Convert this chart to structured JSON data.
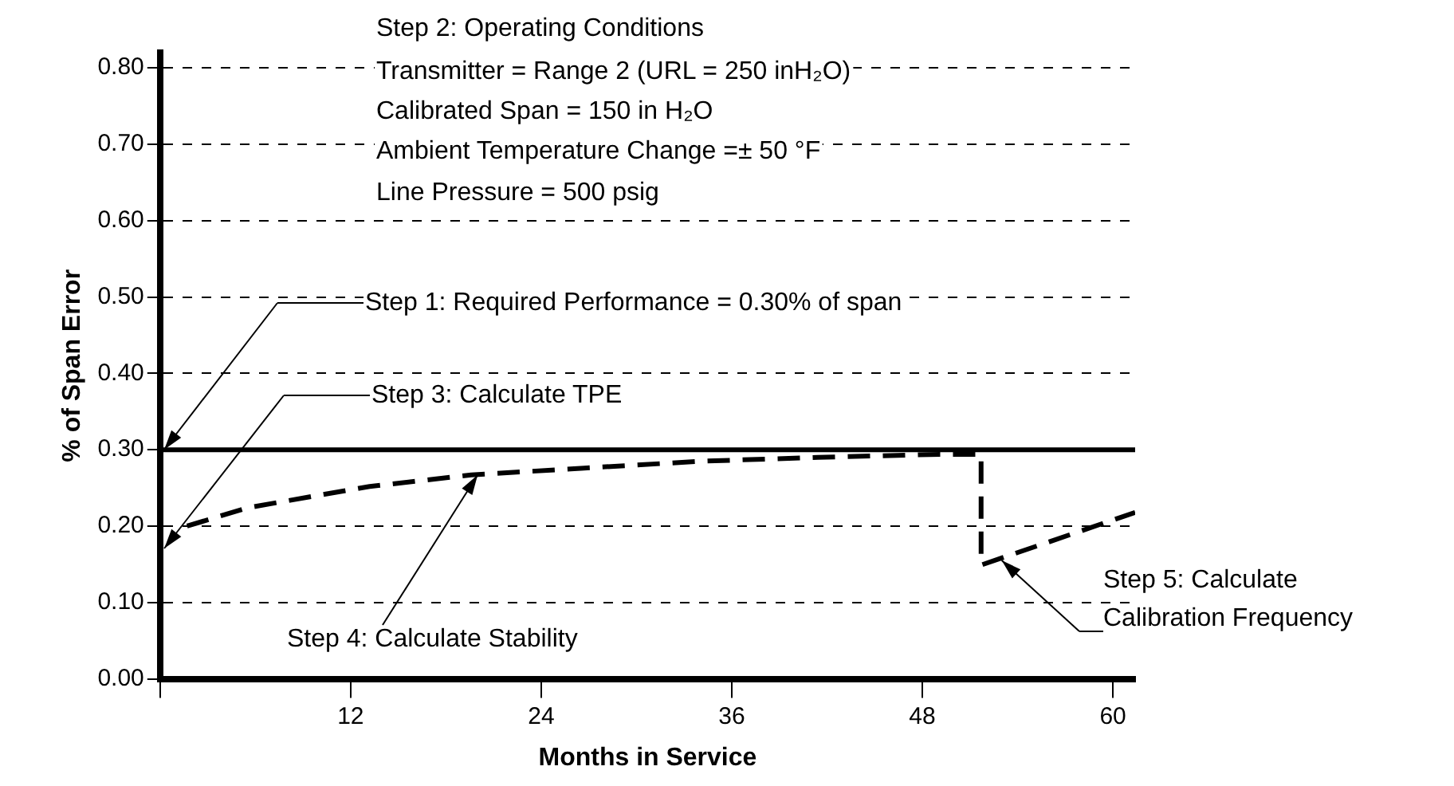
{
  "chart_data": {
    "type": "line",
    "xlabel": "Months in Service",
    "ylabel": "% of Span Error",
    "series": [
      {
        "color": "#000000",
        "x": [
          1.7,
          5.5,
          13.2,
          19.6,
          26.7,
          34.1,
          41.4,
          49.1,
          51.7,
          51.7,
          61.4
        ],
        "values": [
          0.2,
          0.224,
          0.252,
          0.267,
          0.276,
          0.285,
          0.29,
          0.294,
          0.294,
          0.149,
          0.218
        ]
      }
    ],
    "xlim": [
      0,
      61.4
    ],
    "xticks": [
      {
        "value": 0,
        "label": null
      },
      12,
      24,
      36,
      48,
      60
    ],
    "ylim": [
      0,
      0.82
    ],
    "yticks": [
      {
        "value": 0,
        "label": "0.00"
      },
      {
        "value": 0.1,
        "label": "0.10"
      },
      {
        "value": 0.2,
        "label": "0.20"
      },
      {
        "value": 0.3,
        "label": "0.30"
      },
      {
        "value": 0.4,
        "label": "0.40"
      },
      {
        "value": 0.5,
        "label": "0.50"
      },
      {
        "value": 0.6,
        "label": "0.60"
      },
      {
        "value": 0.7,
        "label": "0.70"
      },
      {
        "value": 0.8,
        "label": "0.80"
      }
    ],
    "ref_lines": [
      {
        "axis": "y",
        "value": 0.3,
        "color": "#000000",
        "line_style": "solid"
      }
    ],
    "annotations": [
      "Step 2: Operating Conditions",
      "Transmitter = Range 2 (URL = 250 inH₂O)",
      "Calibrated Span = 150 in H₂O",
      "Ambient Temperature Change =± 50 °F",
      "Line Pressure = 500 psig",
      "Step 1: Required Performance = 0.30% of span",
      "Step 3: Calculate TPE",
      {
        "text": "Step 4: Calculate Stability",
        "x": 20,
        "y": 0.267
      },
      {
        "text": "Step 5: Calculate\nCalibration Frequency",
        "x": 53,
        "y": 0.155
      }
    ],
    "grid": "y",
    "legend": false,
    "marker": "none",
    "line_style": "dashed"
  }
}
